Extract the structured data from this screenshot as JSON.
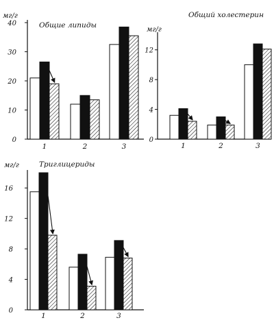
{
  "chart_data": [
    {
      "type": "bar",
      "title": "Общие липиды",
      "ylabel": "мг/г",
      "categories": [
        "1",
        "2",
        "3"
      ],
      "ylim": [
        0,
        40
      ],
      "yticks": [
        0,
        10,
        20,
        30,
        40
      ],
      "series": [
        {
          "fill": "white",
          "values": [
            21,
            12,
            32.5
          ]
        },
        {
          "fill": "black",
          "values": [
            26.5,
            15,
            38.5
          ]
        },
        {
          "fill": "hatched",
          "values": [
            19,
            13.5,
            35.5
          ]
        }
      ],
      "arrows": [
        0
      ]
    },
    {
      "type": "bar",
      "title": "Общий холестерин",
      "ylabel": "мг/г",
      "categories": [
        "1",
        "2",
        "3"
      ],
      "ylim": [
        0,
        14
      ],
      "yticks": [
        0,
        4,
        8,
        12
      ],
      "series": [
        {
          "fill": "white",
          "values": [
            3.2,
            1.9,
            10
          ]
        },
        {
          "fill": "black",
          "values": [
            4.1,
            3,
            12.8
          ]
        },
        {
          "fill": "hatched",
          "values": [
            2.4,
            1.9,
            12.1
          ]
        }
      ],
      "arrows": [
        0,
        1
      ]
    },
    {
      "type": "bar",
      "title": "Триглицериды",
      "ylabel": "мг/г",
      "categories": [
        "1",
        "2",
        "3"
      ],
      "ylim": [
        0,
        18
      ],
      "yticks": [
        0,
        4,
        8,
        12,
        16
      ],
      "series": [
        {
          "fill": "white",
          "values": [
            15.5,
            5.6,
            6.9
          ]
        },
        {
          "fill": "black",
          "values": [
            18,
            7.3,
            9.1
          ]
        },
        {
          "fill": "hatched",
          "values": [
            9.8,
            3.1,
            6.8
          ]
        }
      ],
      "arrows": [
        0,
        1,
        2
      ]
    }
  ]
}
